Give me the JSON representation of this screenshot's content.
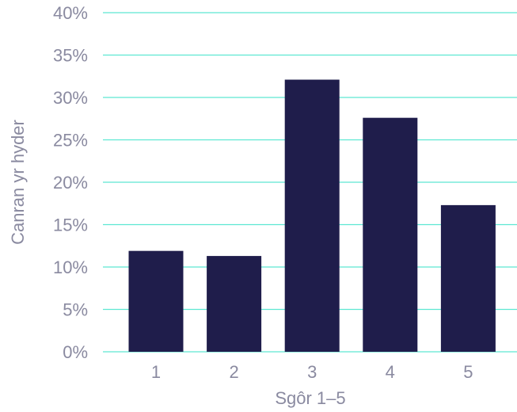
{
  "chart_data": {
    "type": "bar",
    "categories": [
      "1",
      "2",
      "3",
      "4",
      "5"
    ],
    "values": [
      11.9,
      11.3,
      32.1,
      27.6,
      17.3
    ],
    "title": "",
    "xlabel": "Sgôr 1–5",
    "ylabel": "Canran yr hyder",
    "ylim": [
      0,
      40
    ],
    "yticks": [
      0,
      5,
      10,
      15,
      20,
      25,
      30,
      35,
      40
    ],
    "ytick_labels": [
      "0%",
      "5%",
      "10%",
      "15%",
      "20%",
      "25%",
      "30%",
      "35%",
      "40%"
    ],
    "grid": true,
    "legend": "none",
    "colors": {
      "bar": "#1f1d4b",
      "grid": "#5ee8d2",
      "text": "#8a8aa0"
    }
  }
}
